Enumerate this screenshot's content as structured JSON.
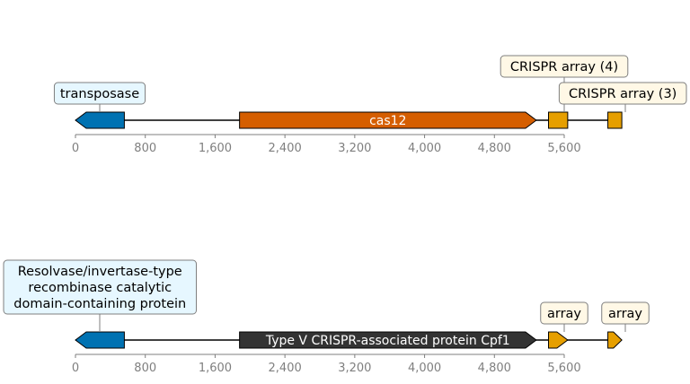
{
  "colors": {
    "transposase": "#0072b2",
    "cas12": "#d55e00",
    "crispr": "#e69f00",
    "cpf1": "#333333",
    "callout_blue_bg": "#e6f7ff",
    "callout_yellow_bg": "#fff8e6",
    "callout_border": "#7f7f7f",
    "axis": "#7f7f7f",
    "backbone": "#000000"
  },
  "tracks": [
    {
      "axis": {
        "min": 0,
        "max": 6300,
        "ticks": [
          0,
          800,
          1600,
          2400,
          3200,
          4000,
          4800,
          5600
        ],
        "tick_labels": [
          "0",
          "800",
          "1,600",
          "2,400",
          "3,200",
          "4,000",
          "4,800",
          "5,600"
        ]
      },
      "features": [
        {
          "name": "transposase",
          "start": 0,
          "end": 560,
          "strand": -1,
          "color_key": "transposase",
          "inline_label": "",
          "callout": [
            "transposase"
          ],
          "callout_bg": "callout_blue_bg"
        },
        {
          "name": "cas12",
          "start": 1880,
          "end": 5280,
          "strand": 1,
          "color_key": "cas12",
          "inline_label": "cas12",
          "inline_color": "#ffffff",
          "callout": []
        },
        {
          "name": "crispr-array-4",
          "start": 5420,
          "end": 5640,
          "strand": 0,
          "color_key": "crispr",
          "inline_label": "",
          "callout": [
            "CRISPR array (4)"
          ],
          "callout_bg": "callout_yellow_bg"
        },
        {
          "name": "crispr-array-3",
          "start": 6100,
          "end": 6260,
          "strand": 0,
          "color_key": "crispr",
          "inline_label": "",
          "callout": [
            "CRISPR array (3)"
          ],
          "callout_bg": "callout_yellow_bg"
        }
      ]
    },
    {
      "axis": {
        "min": 0,
        "max": 6300,
        "ticks": [
          0,
          800,
          1600,
          2400,
          3200,
          4000,
          4800,
          5600
        ],
        "tick_labels": [
          "0",
          "800",
          "1,600",
          "2,400",
          "3,200",
          "4,000",
          "4,800",
          "5,600"
        ]
      },
      "features": [
        {
          "name": "resolvase",
          "start": 0,
          "end": 560,
          "strand": -1,
          "color_key": "transposase",
          "inline_label": "",
          "callout": [
            "Resolvase/invertase-type",
            "recombinase catalytic",
            "domain-containing protein"
          ],
          "callout_bg": "callout_blue_bg"
        },
        {
          "name": "cpf1",
          "start": 1880,
          "end": 5280,
          "strand": 1,
          "color_key": "cpf1",
          "inline_label": "Type V CRISPR-associated protein Cpf1",
          "inline_color": "#ffffff",
          "callout": []
        },
        {
          "name": "array-1",
          "start": 5420,
          "end": 5640,
          "strand": 1,
          "color_key": "crispr",
          "inline_label": "",
          "callout": [
            "array"
          ],
          "callout_bg": "callout_yellow_bg"
        },
        {
          "name": "array-2",
          "start": 6100,
          "end": 6260,
          "strand": 1,
          "color_key": "crispr",
          "inline_label": "",
          "callout": [
            "array"
          ],
          "callout_bg": "callout_yellow_bg"
        }
      ]
    }
  ]
}
